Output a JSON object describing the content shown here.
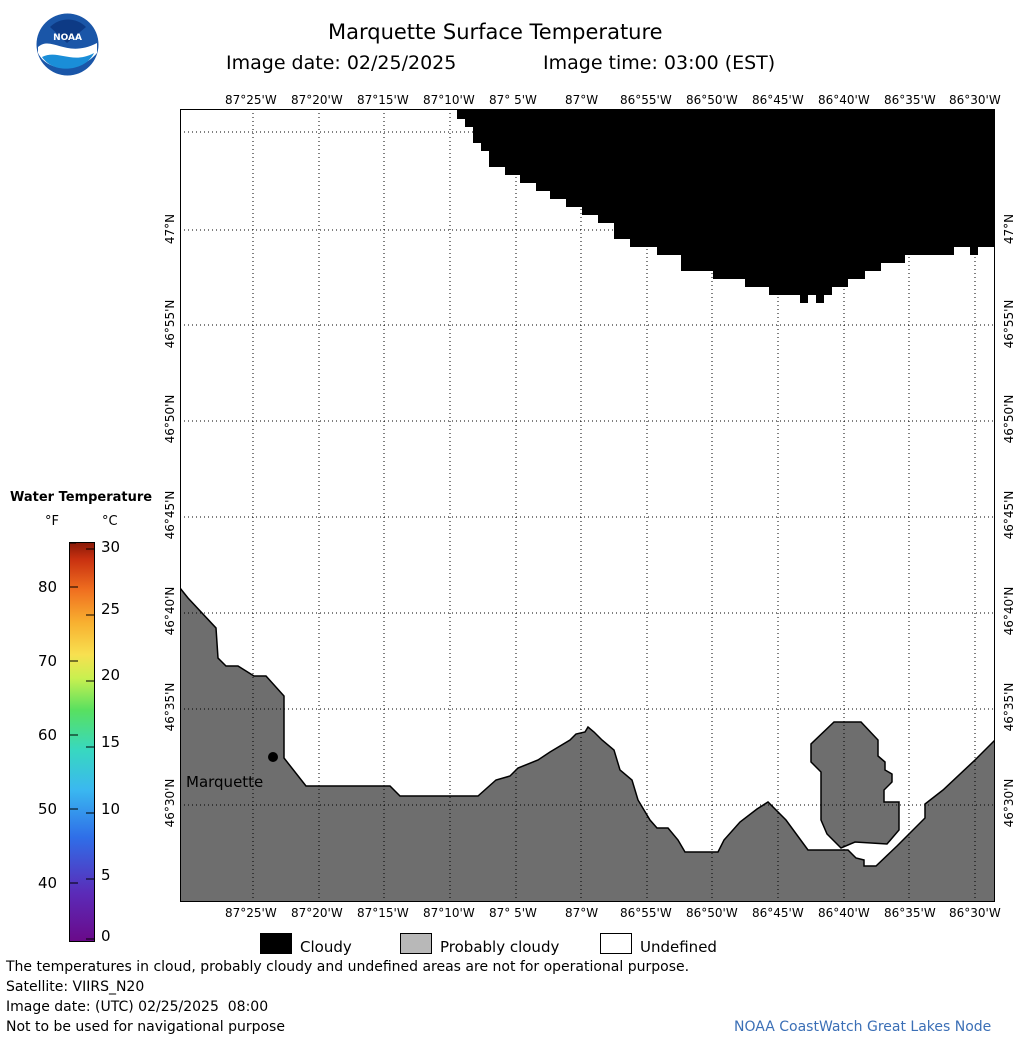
{
  "header": {
    "title": "Marquette Surface Temperature",
    "image_date_label": "Image date: 02/25/2025",
    "image_time_label": "Image time: 03:00 (EST)"
  },
  "logo": {
    "text": "NOAA"
  },
  "map": {
    "lon_ticks": [
      "87°25'W",
      "87°20'W",
      "87°15'W",
      "87°10'W",
      "87° 5'W",
      "87°W",
      "86°55'W",
      "86°50'W",
      "86°45'W",
      "86°40'W",
      "86°35'W",
      "86°30'W"
    ],
    "lat_ticks": [
      "47°N",
      "46°55'N",
      "46°50'N",
      "46°45'N",
      "46°40'N",
      "46°35'N",
      "46°30'N"
    ],
    "city_label": "Marquette",
    "colors": {
      "cloudy": "#000000",
      "land": "#6e6e6e",
      "water": "#ffffff",
      "shore": "#000000"
    }
  },
  "colorbar": {
    "title": "Water Temperature",
    "unit_f": "°F",
    "unit_c": "°C",
    "f_ticks": [
      "80",
      "70",
      "60",
      "50",
      "40"
    ],
    "c_ticks": [
      "30",
      "25",
      "20",
      "15",
      "10",
      "5",
      "0"
    ]
  },
  "legend": {
    "cloudy": "Cloudy",
    "probably_cloudy": "Probably cloudy",
    "undefined": "Undefined"
  },
  "footer": {
    "disclaimer": "The temperatures in cloud, probably cloudy and undefined areas are not for operational purpose.",
    "satellite": "Satellite: VIIRS_N20",
    "utc_date": "Image date: (UTC) 02/25/2025  08:00",
    "nav_warning": "Not to be used for navigational purpose",
    "credit": "NOAA CoastWatch Great Lakes Node"
  }
}
